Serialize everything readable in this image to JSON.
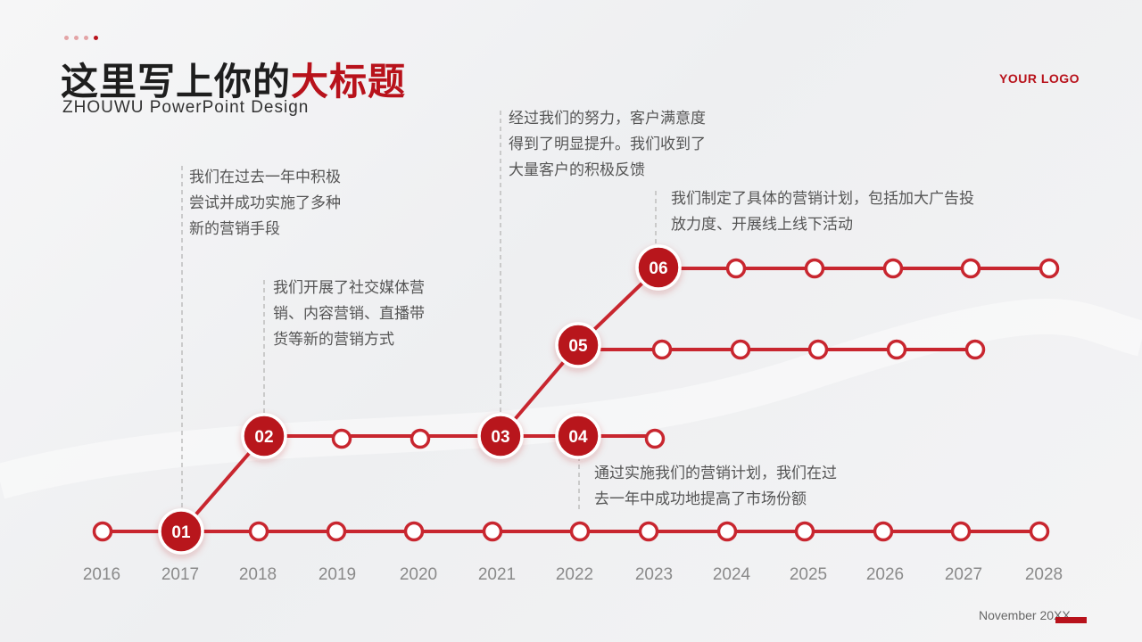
{
  "header": {
    "title_main": "这里写上你的",
    "title_accent": "大标题",
    "subtitle": "ZHOUWU PowerPoint Design",
    "logo": "YOUR LOGO"
  },
  "footer": {
    "date": "November 20XX"
  },
  "colors": {
    "accent": "#b8121b",
    "line": "#c8262f",
    "text": "#555555"
  },
  "timeline": {
    "years": [
      "2016",
      "2017",
      "2018",
      "2019",
      "2020",
      "2021",
      "2022",
      "2023",
      "2024",
      "2025",
      "2026",
      "2027",
      "2028"
    ],
    "milestones": [
      {
        "label": "01"
      },
      {
        "label": "02"
      },
      {
        "label": "03"
      },
      {
        "label": "04"
      },
      {
        "label": "05"
      },
      {
        "label": "06"
      }
    ]
  },
  "notes": {
    "n01": [
      "我们在过去一年中积极",
      "尝试并成功实施了多种",
      "新的营销手段"
    ],
    "n02": [
      "我们开展了社交媒体营",
      "销、内容营销、直播带",
      "货等新的营销方式"
    ],
    "n03": [
      "经过我们的努力，客户满意度",
      "得到了明显提升。我们收到了",
      "大量客户的积极反馈"
    ],
    "n04": [
      "通过实施我们的营销计划，我们在过",
      "去一年中成功地提高了市场份额"
    ],
    "n06": [
      "我们制定了具体的营销计划，包括加大广告投",
      "放力度、开展线上线下活动"
    ]
  }
}
